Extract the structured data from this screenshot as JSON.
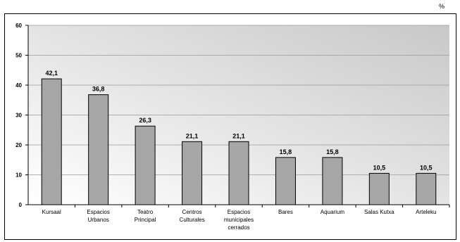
{
  "unit_label": "%",
  "chart_data": {
    "type": "bar",
    "title": "",
    "xlabel": "",
    "ylabel": "",
    "ylim": [
      0,
      60
    ],
    "yticks": [
      0,
      10,
      20,
      30,
      40,
      50,
      60
    ],
    "grid": true,
    "categories": [
      [
        "Kursaal"
      ],
      [
        "Espacios",
        "Urbanos"
      ],
      [
        "Teatro",
        "Principal"
      ],
      [
        "Centros",
        "Culturales"
      ],
      [
        "Espacios",
        "municipales",
        "cerrados"
      ],
      [
        "Bares"
      ],
      [
        "Aquarium"
      ],
      [
        "Salas Kutxa"
      ],
      [
        "Arteleku"
      ]
    ],
    "values": [
      42.1,
      36.8,
      26.3,
      21.1,
      21.1,
      15.8,
      15.8,
      10.5,
      10.5
    ],
    "data_labels": [
      "42,1",
      "36,8",
      "26,3",
      "21,1",
      "21,1",
      "15,8",
      "15,8",
      "10,5",
      "10,5"
    ],
    "colors": {
      "bar_fill": "#a6a6a6",
      "bar_stroke": "#000000",
      "plot_bg_light": "#ffffff",
      "plot_bg_dark": "#c8c8c8",
      "grid": "#9a9a9a"
    }
  }
}
